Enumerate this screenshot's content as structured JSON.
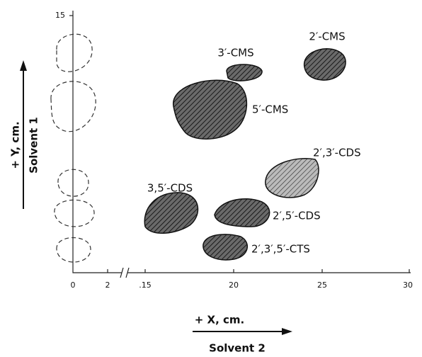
{
  "axes": {
    "y_label": "+ Y, cm.",
    "y_solvent": "Solvent 1",
    "x_label": "+ X, cm.",
    "x_solvent": "Solvent 2",
    "y_ticks": [
      "15"
    ],
    "x_ticks": [
      "0",
      "2",
      ".15",
      "20",
      "25",
      "30"
    ]
  },
  "spots": [
    {
      "label": "2′-CMS"
    },
    {
      "label": "3′-CMS"
    },
    {
      "label": "5′-CMS"
    },
    {
      "label": "2′,3′-CDS"
    },
    {
      "label": "3,5′-CDS"
    },
    {
      "label": "2′,5′-CDS"
    },
    {
      "label": "2′,3′,5′-CTS"
    }
  ]
}
